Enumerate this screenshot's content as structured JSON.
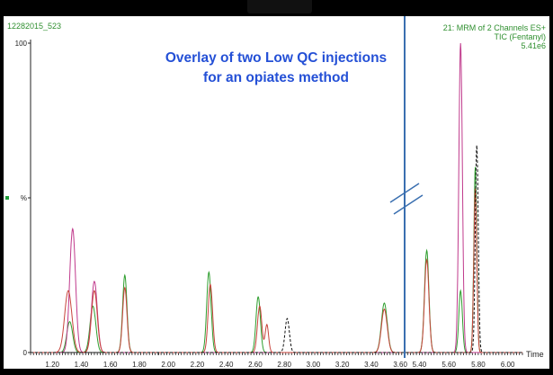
{
  "window": {
    "sample_id": "12282015_523",
    "trace_info": [
      "21: MRM of 2 Channels ES+",
      "TIC (Fentanyl)",
      "5.41e6"
    ]
  },
  "annotation": {
    "title_line1": "Overlay of two Low QC injections",
    "title_line2": "for an opiates method",
    "annotation_color": "#2450d6"
  },
  "chart_data": {
    "type": "line",
    "xlabel": "Time",
    "ylabel": "%",
    "ylim": [
      0,
      100
    ],
    "y_ticks": [
      "0",
      "%",
      "100"
    ],
    "x_ticks": [
      "1.20",
      "1.40",
      "1.60",
      "1.80",
      "2.00",
      "2.20",
      "2.40",
      "2.60",
      "2.80",
      "3.00",
      "3.20",
      "3.40",
      "3.60",
      "5.40",
      "5.60",
      "5.80",
      "6.00"
    ],
    "axis_break": {
      "left_segment_end": 3.63,
      "right_segment_start": 5.3
    },
    "series": [
      {
        "color": "#2e9e2e",
        "peaks": [
          {
            "rt": 1.32,
            "height": 10,
            "width": 0.02
          },
          {
            "rt": 1.48,
            "height": 15,
            "width": 0.02
          },
          {
            "rt": 1.7,
            "height": 25,
            "width": 0.015
          },
          {
            "rt": 2.28,
            "height": 26,
            "width": 0.015
          },
          {
            "rt": 2.62,
            "height": 18,
            "width": 0.015
          },
          {
            "rt": 3.49,
            "height": 16,
            "width": 0.02
          },
          {
            "rt": 5.45,
            "height": 33,
            "width": 0.015
          },
          {
            "rt": 5.68,
            "height": 20,
            "width": 0.012
          },
          {
            "rt": 5.78,
            "height": 60,
            "width": 0.01
          }
        ]
      },
      {
        "color": "#c03a8c",
        "peaks": [
          {
            "rt": 1.34,
            "height": 40,
            "width": 0.02
          },
          {
            "rt": 1.49,
            "height": 23,
            "width": 0.02
          },
          {
            "rt": 5.68,
            "height": 100,
            "width": 0.012
          }
        ]
      },
      {
        "color": "#c8433b",
        "peaks": [
          {
            "rt": 1.31,
            "height": 20,
            "width": 0.025
          },
          {
            "rt": 1.49,
            "height": 20,
            "width": 0.02
          },
          {
            "rt": 1.7,
            "height": 21,
            "width": 0.015
          },
          {
            "rt": 2.29,
            "height": 22,
            "width": 0.015
          },
          {
            "rt": 2.63,
            "height": 15,
            "width": 0.015
          },
          {
            "rt": 2.68,
            "height": 9,
            "width": 0.012
          },
          {
            "rt": 3.49,
            "height": 14,
            "width": 0.02
          },
          {
            "rt": 5.45,
            "height": 30,
            "width": 0.015
          },
          {
            "rt": 5.78,
            "height": 53,
            "width": 0.01
          }
        ]
      },
      {
        "color": "#111111",
        "peaks": [
          {
            "rt": 2.82,
            "height": 11,
            "width": 0.015
          },
          {
            "rt": 5.79,
            "height": 67,
            "width": 0.01
          }
        ]
      }
    ]
  }
}
